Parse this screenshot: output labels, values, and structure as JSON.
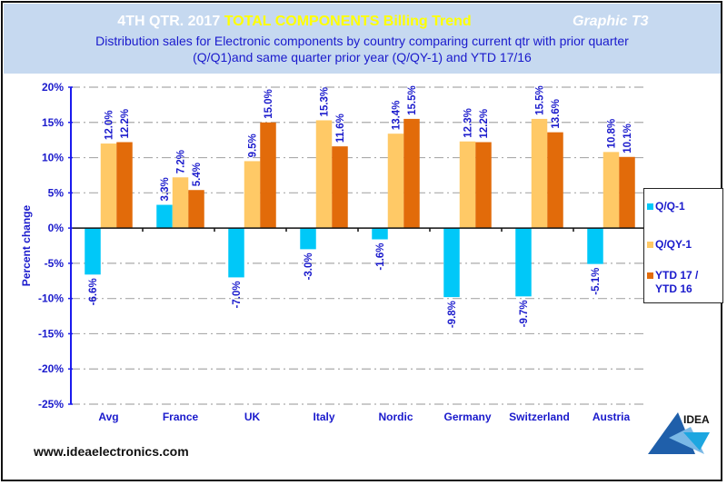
{
  "header": {
    "title_prefix": "4TH QTR. 2017",
    "title_highlight": "TOTAL COMPONENTS  Billing Trend",
    "graphic_label": "Graphic T3",
    "subtitle_line1": "Distribution  sales for Electronic components by country comparing  current qtr with prior quarter",
    "subtitle_line2": "(Q/Q1)and  same quarter prior year (Q/QY-1)  and YTD  17/16"
  },
  "footer": {
    "url": "www.ideaelectronics.com",
    "logo_text": "IDEA"
  },
  "colors": {
    "q_q1": "#00c8f8",
    "q_qy1": "#ffc966",
    "ytd": "#e26b0a",
    "text_blue": "#1a1acc"
  },
  "chart_data": {
    "type": "bar",
    "title": "4TH QTR. 2017 TOTAL COMPONENTS  Billing Trend",
    "xlabel": "",
    "ylabel": "Percent change",
    "ylim": [
      -25,
      20
    ],
    "yticks": [
      20,
      15,
      10,
      5,
      0,
      -5,
      -10,
      -15,
      -20,
      -25
    ],
    "ytick_labels": [
      "20%",
      "15%",
      "10%",
      "5%",
      "0%",
      "-5%",
      "-10%",
      "-15%",
      "-20%",
      "-25%"
    ],
    "grid": true,
    "legend_position": "right",
    "categories": [
      "Avg",
      "France",
      "UK",
      "Italy",
      "Nordic",
      "Germany",
      "Switzerland",
      "Austria"
    ],
    "series": [
      {
        "name": "Q/Q-1",
        "values": [
          -6.6,
          3.3,
          -7.0,
          -3.0,
          -1.6,
          -9.8,
          -9.7,
          -5.1
        ],
        "labels": [
          "-6.6%",
          "3.3%",
          "-7.0%",
          "-3.0%",
          "-1.6%",
          "-9.8%",
          "-9.7%",
          "-5.1%"
        ]
      },
      {
        "name": "Q/QY-1",
        "values": [
          12.0,
          7.2,
          9.5,
          15.3,
          13.4,
          12.3,
          15.5,
          10.8
        ],
        "labels": [
          "12.0%",
          "7.2%",
          "9.5%",
          "15.3%",
          "13.4%",
          "12.3%",
          "15.5%",
          "10.8%"
        ]
      },
      {
        "name": "YTD 17 / YTD 16",
        "name_line1": "YTD 17 /",
        "name_line2": "YTD 16",
        "values": [
          12.2,
          5.4,
          15.0,
          11.6,
          15.5,
          12.2,
          13.6,
          10.1
        ],
        "labels": [
          "12.2%",
          "5.4%",
          "15.0%",
          "11.6%",
          "15.5%",
          "12.2%",
          "13.6%",
          "10.1%"
        ]
      }
    ]
  }
}
